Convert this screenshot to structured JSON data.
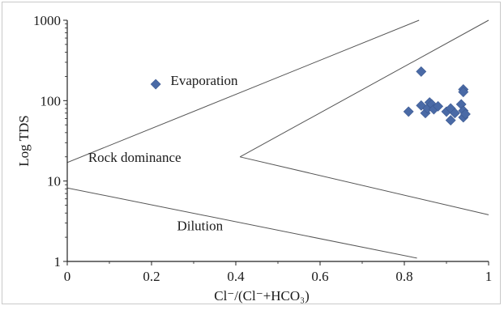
{
  "chart_data": {
    "type": "scatter",
    "xlabel": "Cl⁻/(Cl⁻+HCO₃)",
    "ylabel": "Log TDS",
    "xlim": [
      0,
      1
    ],
    "ylim": [
      1,
      1000
    ],
    "y_scale": "log",
    "x_ticks": [
      "0",
      "0.2",
      "0.4",
      "0.6",
      "0.8",
      "1"
    ],
    "y_ticks": [
      "1",
      "10",
      "100",
      "1000"
    ],
    "grid": false,
    "marker_color": "#4a6aa6",
    "line_color": "#555555",
    "annotations": [
      {
        "text": "Evaporation",
        "x": 0.325,
        "y": 180
      },
      {
        "text": "Rock dominance",
        "x": 0.16,
        "y": 20
      },
      {
        "text": "Dilution",
        "x": 0.315,
        "y": 2.8
      }
    ],
    "boundary_lines": [
      {
        "x": [
          0,
          0.835
        ],
        "y": [
          17,
          1000
        ]
      },
      {
        "x": [
          0.41,
          1
        ],
        "y": [
          20,
          1000
        ]
      },
      {
        "x": [
          0.41,
          1
        ],
        "y": [
          20,
          3.8
        ]
      },
      {
        "x": [
          0,
          0.83
        ],
        "y": [
          8.2,
          1.1
        ]
      }
    ],
    "points": [
      {
        "x": 0.21,
        "y": 160
      },
      {
        "x": 0.84,
        "y": 230
      },
      {
        "x": 0.81,
        "y": 73
      },
      {
        "x": 0.84,
        "y": 87
      },
      {
        "x": 0.85,
        "y": 70
      },
      {
        "x": 0.855,
        "y": 80
      },
      {
        "x": 0.86,
        "y": 95
      },
      {
        "x": 0.865,
        "y": 90
      },
      {
        "x": 0.87,
        "y": 78
      },
      {
        "x": 0.88,
        "y": 85
      },
      {
        "x": 0.9,
        "y": 73
      },
      {
        "x": 0.91,
        "y": 80
      },
      {
        "x": 0.91,
        "y": 57
      },
      {
        "x": 0.92,
        "y": 70
      },
      {
        "x": 0.935,
        "y": 90
      },
      {
        "x": 0.94,
        "y": 138
      },
      {
        "x": 0.94,
        "y": 128
      },
      {
        "x": 0.94,
        "y": 75
      },
      {
        "x": 0.94,
        "y": 62
      },
      {
        "x": 0.945,
        "y": 68
      }
    ]
  }
}
